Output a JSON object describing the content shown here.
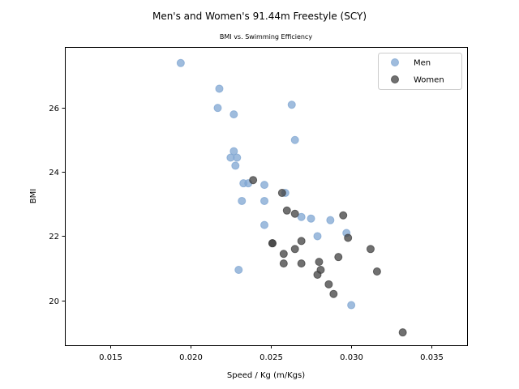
{
  "chart_data": {
    "type": "scatter",
    "title": "Men's and Women's 91.44m Freestyle (SCY)",
    "subtitle": "BMI vs. Swimming Efficiency",
    "xlabel": "Speed / Kg (m/Kgs)",
    "ylabel": "BMI",
    "xlim": [
      0.0122,
      0.0372
    ],
    "ylim": [
      18.6,
      27.9
    ],
    "xticks": [
      0.015,
      0.02,
      0.025,
      0.03,
      0.035
    ],
    "xtick_labels": [
      "0.015",
      "0.020",
      "0.025",
      "0.030",
      "0.035"
    ],
    "yticks": [
      20,
      22,
      24,
      26
    ],
    "ytick_labels": [
      "20",
      "22",
      "24",
      "26"
    ],
    "grid": false,
    "legend_position": "top-right",
    "series": [
      {
        "name": "Men",
        "color": "#7fa6d2",
        "points": [
          [
            0.0194,
            27.4
          ],
          [
            0.0218,
            26.6
          ],
          [
            0.0217,
            26.0
          ],
          [
            0.0263,
            26.1
          ],
          [
            0.0227,
            25.8
          ],
          [
            0.0265,
            25.0
          ],
          [
            0.0227,
            24.65
          ],
          [
            0.0225,
            24.45
          ],
          [
            0.0229,
            24.45
          ],
          [
            0.0228,
            24.2
          ],
          [
            0.0233,
            23.65
          ],
          [
            0.0236,
            23.65
          ],
          [
            0.0246,
            23.6
          ],
          [
            0.0259,
            23.35
          ],
          [
            0.0232,
            23.1
          ],
          [
            0.0246,
            23.1
          ],
          [
            0.0269,
            22.6
          ],
          [
            0.0275,
            22.55
          ],
          [
            0.0287,
            22.5
          ],
          [
            0.0246,
            22.35
          ],
          [
            0.0279,
            22.0
          ],
          [
            0.0297,
            22.1
          ],
          [
            0.023,
            20.95
          ],
          [
            0.03,
            19.85
          ]
        ]
      },
      {
        "name": "Women",
        "color": "#404040",
        "points": [
          [
            0.0239,
            23.75
          ],
          [
            0.0257,
            23.35
          ],
          [
            0.026,
            22.8
          ],
          [
            0.0265,
            22.7
          ],
          [
            0.0295,
            22.65
          ],
          [
            0.0298,
            21.95
          ],
          [
            0.0269,
            21.85
          ],
          [
            0.0251,
            21.78
          ],
          [
            0.0251,
            21.78
          ],
          [
            0.0312,
            21.6
          ],
          [
            0.0265,
            21.6
          ],
          [
            0.0258,
            21.45
          ],
          [
            0.0292,
            21.35
          ],
          [
            0.028,
            21.2
          ],
          [
            0.0258,
            21.15
          ],
          [
            0.0269,
            21.15
          ],
          [
            0.0281,
            20.95
          ],
          [
            0.0316,
            20.9
          ],
          [
            0.0279,
            20.8
          ],
          [
            0.0286,
            20.5
          ],
          [
            0.0289,
            20.2
          ],
          [
            0.0332,
            19.0
          ]
        ]
      }
    ]
  }
}
